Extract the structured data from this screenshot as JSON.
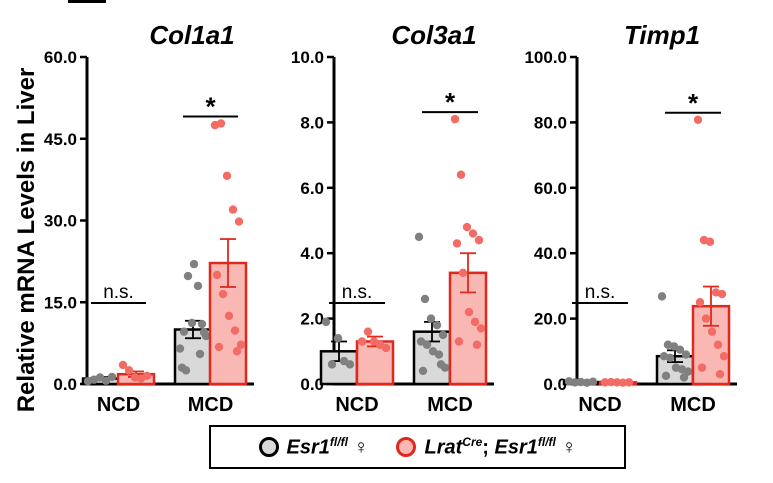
{
  "y_axis_label": "Relative mRNA Levels in Liver",
  "colors": {
    "control_fill": "#d9d9d9",
    "control_edge": "#000000",
    "control_dot": "#808080",
    "ko_fill": "#f9b8b4",
    "ko_edge": "#e0281c",
    "ko_dot": "#f26b64"
  },
  "legend": {
    "control": {
      "gene": "Esr1",
      "sup": "fl/fl",
      "sex": "♀"
    },
    "ko": {
      "prefix": "Lrat",
      "prefix_sup": "Cre",
      "sep": "; ",
      "gene": "Esr1",
      "sup": "fl/fl",
      "sex": "♀"
    }
  },
  "chart_data": [
    {
      "type": "bar",
      "title": "Col1a1",
      "categories": [
        "NCD",
        "MCD"
      ],
      "ylim": [
        0,
        60
      ],
      "yticks": [
        "0.0",
        "15.0",
        "30.0",
        "45.0",
        "60.0"
      ],
      "ytick_values": [
        0,
        15,
        30,
        45,
        60
      ],
      "series": [
        {
          "name": "Esr1 fl/fl",
          "values": [
            1.0,
            10.0
          ],
          "sem": [
            0.3,
            1.6
          ],
          "points": [
            [
              0.5,
              0.8,
              1.2,
              0.6,
              1.3
            ],
            [
              6.5,
              2.5,
              11.2,
              18.0,
              9.5,
              3.0,
              19.8,
              22.0,
              5.5,
              8.8,
              9.6,
              11.0
            ]
          ]
        },
        {
          "name": "LratCre; Esr1 fl/fl",
          "values": [
            1.8,
            22.2
          ],
          "sem": [
            0.5,
            4.4
          ],
          "points": [
            [
              3.5,
              2.5,
              1.2,
              1.0,
              1.5
            ],
            [
              47.5,
              47.8,
              38.2,
              32.0,
              29.8,
              20.0,
              16.5,
              12.5,
              9.8,
              7.2,
              6.8,
              6.0
            ]
          ]
        }
      ],
      "annotations": [
        {
          "group": "NCD",
          "text": "n.s."
        },
        {
          "group": "MCD",
          "text": "*"
        }
      ]
    },
    {
      "type": "bar",
      "title": "Col3a1",
      "categories": [
        "NCD",
        "MCD"
      ],
      "ylim": [
        0,
        10
      ],
      "yticks": [
        "0.0",
        "2.0",
        "4.0",
        "6.0",
        "8.0",
        "10.0"
      ],
      "ytick_values": [
        0,
        2,
        4,
        6,
        8,
        10
      ],
      "series": [
        {
          "name": "Esr1 fl/fl",
          "values": [
            1.0,
            1.6
          ],
          "sem": [
            0.3,
            0.3
          ],
          "points": [
            [
              1.9,
              0.6,
              1.4,
              0.7,
              0.6
            ],
            [
              4.5,
              2.6,
              2.0,
              1.8,
              1.5,
              1.3,
              1.2,
              1.0,
              0.9,
              0.5,
              0.4,
              0.6
            ]
          ]
        },
        {
          "name": "LratCre; Esr1 fl/fl",
          "values": [
            1.3,
            3.4
          ],
          "sem": [
            0.15,
            0.6
          ],
          "points": [
            [
              1.3,
              1.6,
              1.3,
              1.2,
              1.1
            ],
            [
              8.1,
              6.4,
              4.8,
              4.6,
              4.4,
              4.3,
              3.4,
              2.2,
              1.9,
              1.7,
              1.3,
              1.2
            ]
          ]
        }
      ],
      "annotations": [
        {
          "group": "NCD",
          "text": "n.s."
        },
        {
          "group": "MCD",
          "text": "*"
        }
      ]
    },
    {
      "type": "bar",
      "title": "Timp1",
      "categories": [
        "NCD",
        "MCD"
      ],
      "ylim": [
        0,
        100
      ],
      "yticks": [
        "0.0",
        "20.0",
        "40.0",
        "60.0",
        "80.0",
        "100.0"
      ],
      "ytick_values": [
        0,
        20,
        40,
        60,
        80,
        100
      ],
      "series": [
        {
          "name": "Esr1 fl/fl",
          "values": [
            0.6,
            8.5
          ],
          "sem": [
            0.2,
            1.8
          ],
          "points": [
            [
              0.8,
              0.5,
              0.6,
              0.4,
              0.7
            ],
            [
              26.8,
              12.0,
              11.5,
              10.5,
              9.0,
              8.5,
              8.0,
              5.0,
              4.5,
              3.8,
              2.5,
              2.0
            ]
          ]
        },
        {
          "name": "LratCre; Esr1 fl/fl",
          "values": [
            0.5,
            23.8
          ],
          "sem": [
            0.1,
            6.0
          ],
          "points": [
            [
              0.5,
              0.6,
              0.5,
              0.4,
              0.5
            ],
            [
              80.8,
              44.0,
              43.5,
              28.0,
              27.5,
              25.0,
              20.0,
              16.0,
              12.0,
              8.5,
              5.0,
              3.0
            ]
          ]
        }
      ],
      "annotations": [
        {
          "group": "NCD",
          "text": "n.s."
        },
        {
          "group": "MCD",
          "text": "*"
        }
      ]
    }
  ]
}
